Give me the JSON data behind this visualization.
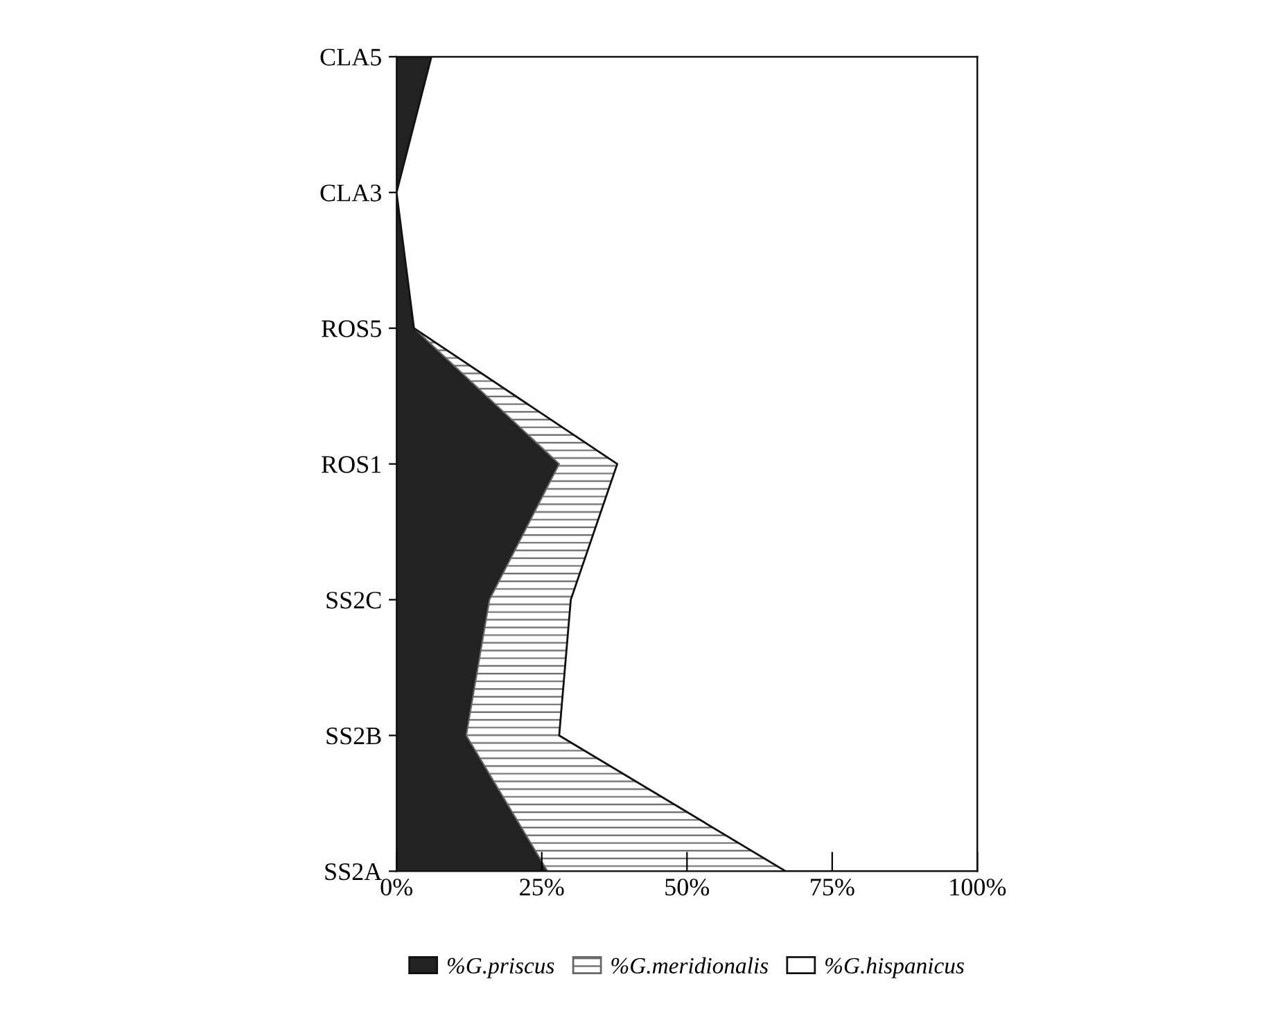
{
  "chart_data": {
    "type": "area",
    "orientation": "horizontal",
    "stacked": true,
    "categories": [
      "CLA5",
      "CLA3",
      "ROS5",
      "ROS1",
      "SS2C",
      "SS2B",
      "SS2A"
    ],
    "series": [
      {
        "name": "%G.priscus",
        "color": "#222222",
        "values": [
          6,
          0,
          3,
          28,
          16,
          12,
          26
        ]
      },
      {
        "name": "%G.meridionalis",
        "color": "#666666",
        "values": [
          0,
          0,
          0,
          10,
          14,
          16,
          41
        ]
      },
      {
        "name": "%G.hispanicus",
        "color": "#ffffff",
        "values": [
          94,
          100,
          97,
          62,
          70,
          72,
          33
        ]
      }
    ],
    "xlim": [
      0,
      100
    ],
    "xticks": [
      {
        "value": 0,
        "label": "0%"
      },
      {
        "value": 25,
        "label": "25%"
      },
      {
        "value": 50,
        "label": "50%"
      },
      {
        "value": 75,
        "label": "75%"
      },
      {
        "value": 100,
        "label": "100%"
      }
    ],
    "legend": "bottom",
    "grid": false
  }
}
